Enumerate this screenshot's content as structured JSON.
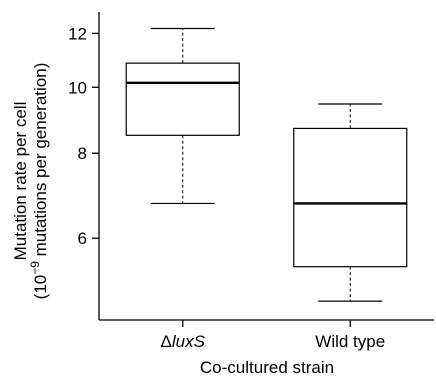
{
  "chart_data": {
    "type": "box",
    "categories": [
      {
        "prefix": "Δ",
        "italic": "luxS"
      },
      {
        "prefix": "Wild type",
        "italic": ""
      }
    ],
    "boxes": [
      {
        "min": 6.75,
        "q1": 8.5,
        "median": 10.15,
        "q3": 10.85,
        "max": 12.2
      },
      {
        "min": 4.85,
        "q1": 5.45,
        "median": 6.75,
        "q3": 8.7,
        "max": 9.45
      }
    ],
    "y_ticks": [
      6,
      8,
      10,
      12
    ],
    "y_scale": "log",
    "ylim": [
      4.55,
      12.9
    ],
    "xlabel": "Co-cultured strain",
    "ylabel_line1": "Mutation rate per cell",
    "ylabel_line2": {
      "open": "(10",
      "sup": "−9",
      "close": " mutations per generation)"
    },
    "grid": false
  }
}
